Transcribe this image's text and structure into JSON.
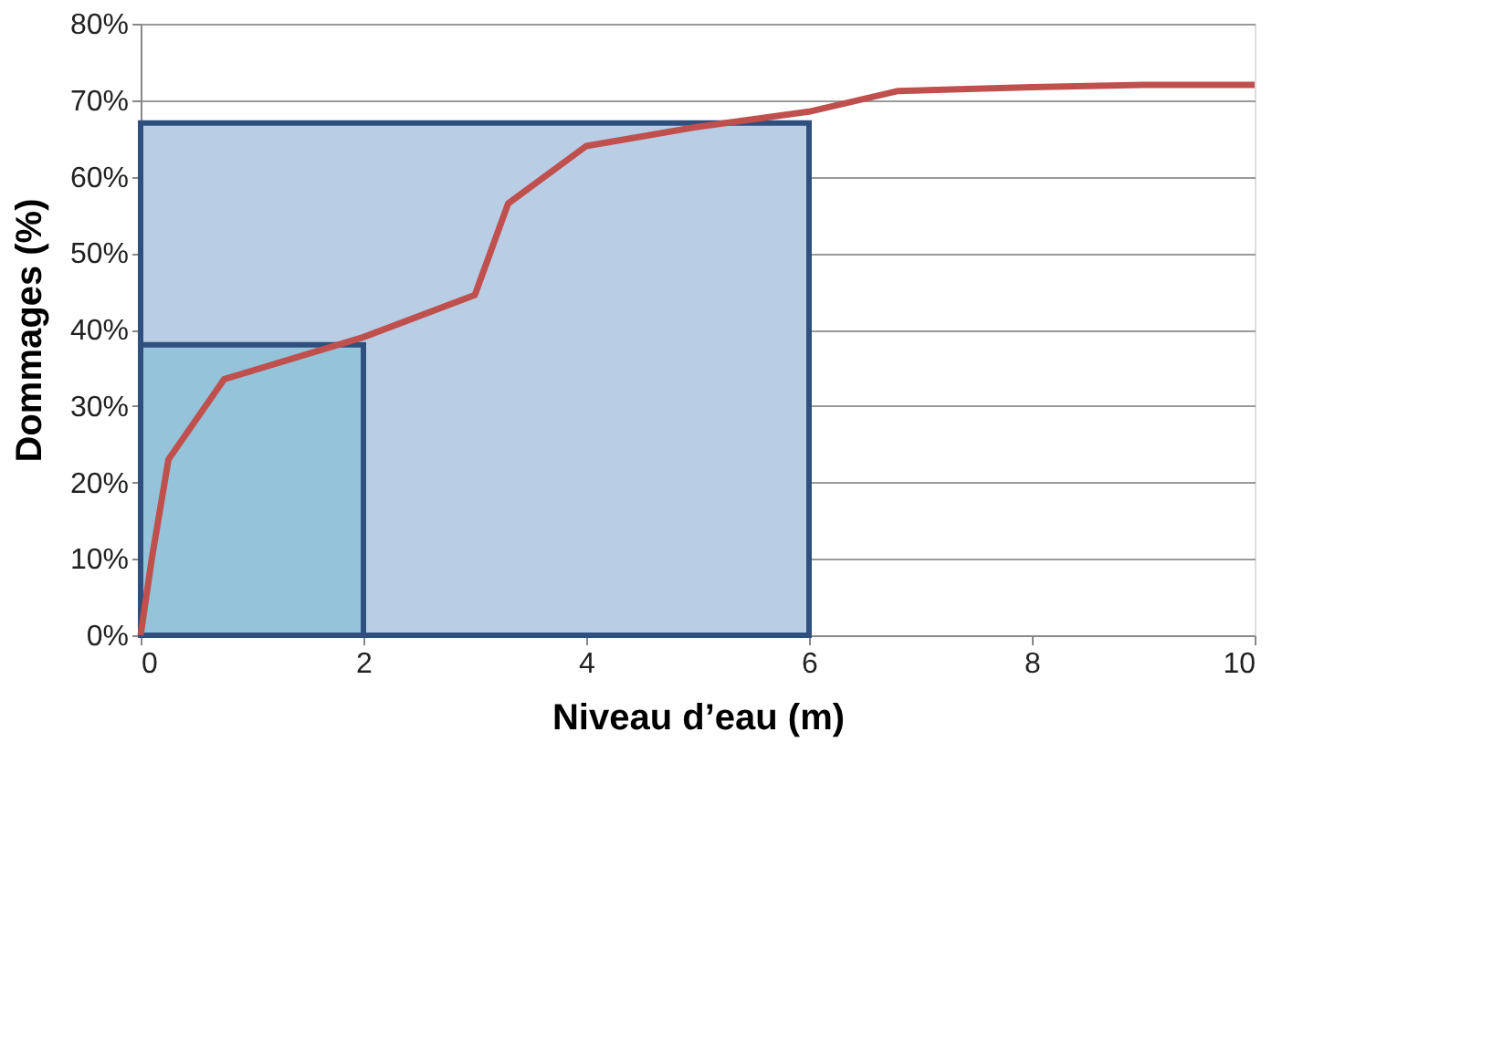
{
  "chart_data": {
    "type": "line",
    "xlabel": "Niveau d’eau (m)",
    "ylabel": "Dommages (%)",
    "xlim": [
      0,
      10
    ],
    "xticks": [
      0,
      2,
      4,
      6,
      8,
      10
    ],
    "ylim": [
      0,
      80
    ],
    "yticks": [
      {
        "value": 0,
        "label": "0%"
      },
      {
        "value": 10,
        "label": "10%"
      },
      {
        "value": 20,
        "label": "20%"
      },
      {
        "value": 30,
        "label": "30%"
      },
      {
        "value": 40,
        "label": "40%"
      },
      {
        "value": 50,
        "label": "50%"
      },
      {
        "value": 60,
        "label": "60%"
      },
      {
        "value": 70,
        "label": "70%"
      },
      {
        "value": 80,
        "label": "80%"
      }
    ],
    "grid": "y",
    "series": [
      {
        "type": "area",
        "color": "#b9cde5",
        "x": [
          0,
          6
        ],
        "values": [
          67,
          67
        ]
      },
      {
        "type": "area",
        "color": "#95c3da",
        "x": [
          0,
          2
        ],
        "values": [
          38,
          38
        ]
      },
      {
        "color": "#c0504d",
        "x": [
          0,
          0.1,
          0.25,
          0.75,
          2,
          3,
          3.3,
          4,
          5,
          6,
          6.8,
          8,
          9,
          10
        ],
        "values": [
          0,
          10,
          23,
          33.5,
          39,
          44.5,
          56.5,
          64,
          66.5,
          68.5,
          71.2,
          71.7,
          72,
          72
        ]
      }
    ]
  }
}
